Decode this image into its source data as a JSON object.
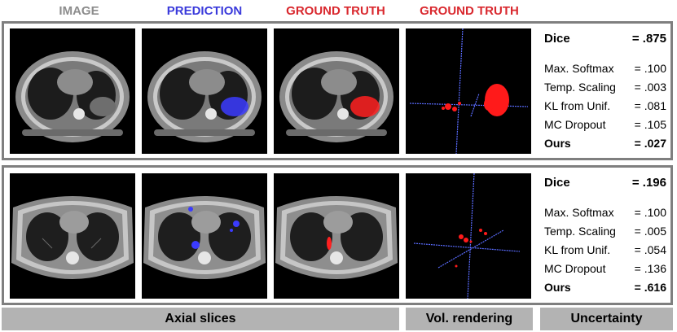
{
  "headers": {
    "image": "IMAGE",
    "prediction": "PREDICTION",
    "ground_truth_1": "GROUND TRUTH",
    "ground_truth_2": "GROUND TRUTH"
  },
  "colors": {
    "image_header": "#8c8c8c",
    "prediction_header": "#3a3adb",
    "ground_truth_header": "#d9282e",
    "panel_border": "#7f7f7f",
    "footer_bar": "#b3b3b3",
    "prediction_overlay": "#3b3bff",
    "ground_truth_overlay": "#ff2020"
  },
  "rows": [
    {
      "dice_label": "Dice",
      "dice_value": "= .875",
      "metrics": [
        {
          "label": "Max. Softmax",
          "value": "= .100"
        },
        {
          "label": "Temp. Scaling",
          "value": "= .003"
        },
        {
          "label": "KL from Unif.",
          "value": "= .081"
        },
        {
          "label": "MC Dropout",
          "value": "= .105"
        }
      ],
      "ours_label": "Ours",
      "ours_value": "= .027"
    },
    {
      "dice_label": "Dice",
      "dice_value": "= .196",
      "metrics": [
        {
          "label": "Max. Softmax",
          "value": "= .100"
        },
        {
          "label": "Temp. Scaling",
          "value": "= .005"
        },
        {
          "label": "KL from Unif.",
          "value": "= .054"
        },
        {
          "label": "MC Dropout",
          "value": "= .136"
        }
      ],
      "ours_label": "Ours",
      "ours_value": "= .616"
    }
  ],
  "footer": {
    "axial": "Axial slices",
    "vol": "Vol. rendering",
    "uncertainty": "Uncertainty"
  }
}
